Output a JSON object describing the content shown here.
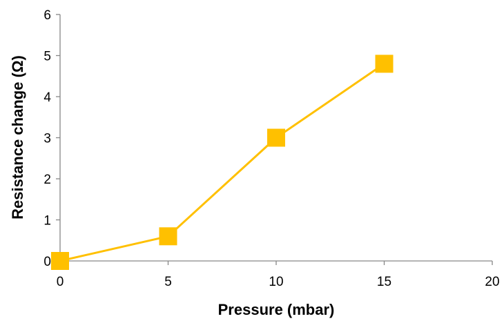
{
  "chart_data": {
    "type": "line",
    "title": "",
    "xlabel": "Pressure (mbar)",
    "ylabel": "Resistance change (Ω)",
    "xlim": [
      0,
      20
    ],
    "ylim": [
      0,
      6
    ],
    "xticks": [
      0,
      5,
      10,
      15,
      20
    ],
    "yticks": [
      0,
      1,
      2,
      3,
      4,
      5,
      6
    ],
    "grid": false,
    "legend": "none",
    "series": [
      {
        "x": [
          0,
          5,
          10,
          15
        ],
        "y": [
          0,
          0.6,
          3.0,
          4.8
        ],
        "color": "#FFC000",
        "marker": "square"
      }
    ]
  }
}
